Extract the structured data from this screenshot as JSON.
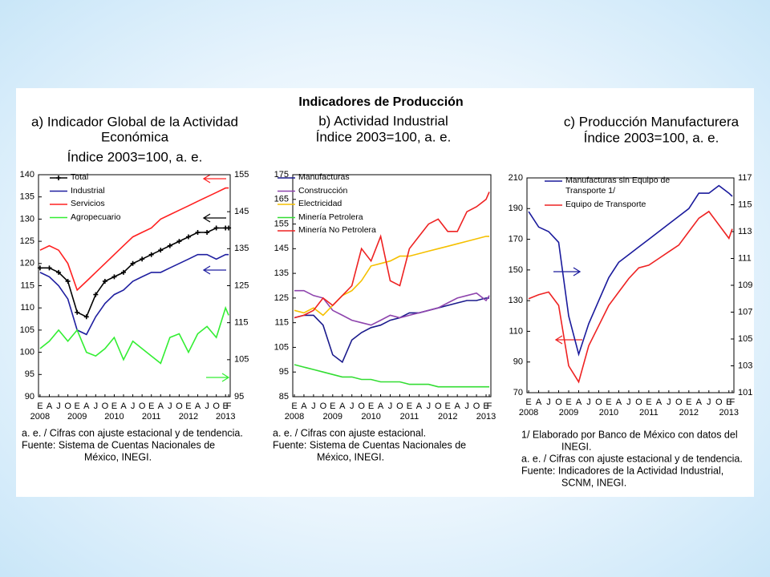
{
  "header": {
    "title": "Indicadores de Producción"
  },
  "chart_data": [
    {
      "type": "line",
      "title": [
        "a) Indicador Global de la Actividad",
        "Económica",
        "Índice 2003=100, a. e."
      ],
      "categories": [
        "E",
        "A",
        "J",
        "O",
        "E",
        "A",
        "J",
        "O",
        "E",
        "A",
        "J",
        "O",
        "E",
        "A",
        "J",
        "O",
        "E",
        "A",
        "J",
        "O",
        "E",
        "F"
      ],
      "years": [
        "2008",
        "2009",
        "2010",
        "2011",
        "2012",
        "2013"
      ],
      "ylim": [
        90,
        140
      ],
      "yticks": [
        90,
        95,
        100,
        105,
        110,
        115,
        120,
        125,
        130,
        135,
        140
      ],
      "y2lim": [
        95,
        155
      ],
      "y2ticks": [
        95,
        105,
        115,
        125,
        135,
        145,
        155
      ],
      "series": [
        {
          "name": "Total",
          "color": "#000000",
          "marker": "plus",
          "values": [
            119,
            119,
            118,
            116,
            109,
            108,
            113,
            116,
            117,
            118,
            120,
            121,
            122,
            123,
            124,
            125,
            126,
            127,
            127,
            128,
            128,
            128
          ]
        },
        {
          "name": "Industrial",
          "color": "#1f1fa0",
          "values": [
            118,
            117,
            115,
            112,
            105,
            104,
            108,
            111,
            113,
            114,
            116,
            117,
            118,
            118,
            119,
            120,
            121,
            122,
            122,
            121,
            122,
            122
          ]
        },
        {
          "name": "Servicios",
          "color": "#ff2020",
          "values": [
            123,
            124,
            123,
            120,
            114,
            116,
            118,
            120,
            122,
            124,
            126,
            127,
            128,
            130,
            131,
            132,
            133,
            134,
            135,
            136,
            137,
            137
          ]
        },
        {
          "name": "Agropecuario",
          "color": "#33ee33",
          "axis": "y2",
          "values": [
            108,
            110,
            113,
            110,
            113,
            107,
            106,
            108,
            111,
            105,
            110,
            108,
            106,
            104,
            111,
            112,
            107,
            112,
            114,
            111,
            119,
            117
          ]
        }
      ],
      "notes": [
        [
          "a. e. / Cifras con ajuste estacional y de tendencia."
        ],
        [
          "Fuente:  Sistema de Cuentas Nacionales de",
          "México, INEGI."
        ]
      ]
    },
    {
      "type": "line",
      "title": [
        "b) Actividad Industrial",
        "Índice 2003=100, a. e."
      ],
      "categories": [
        "E",
        "A",
        "J",
        "O",
        "E",
        "A",
        "J",
        "O",
        "E",
        "A",
        "J",
        "O",
        "E",
        "A",
        "J",
        "O",
        "E",
        "A",
        "J",
        "O",
        "E",
        "F"
      ],
      "years": [
        "2008",
        "2009",
        "2010",
        "2011",
        "2012",
        "2013"
      ],
      "ylim": [
        85,
        175
      ],
      "yticks": [
        85,
        95,
        105,
        115,
        125,
        135,
        145,
        155,
        165,
        175
      ],
      "series": [
        {
          "name": "Manufacturas",
          "color": "#1a1a8c",
          "values": [
            117,
            118,
            118,
            114,
            102,
            99,
            108,
            111,
            113,
            114,
            116,
            117,
            119,
            119,
            120,
            121,
            122,
            123,
            124,
            124,
            125,
            125
          ]
        },
        {
          "name": "Construcción",
          "color": "#8e44ad",
          "values": [
            128,
            128,
            126,
            125,
            120,
            118,
            116,
            115,
            114,
            116,
            118,
            117,
            118,
            119,
            120,
            121,
            123,
            125,
            126,
            127,
            124,
            126
          ]
        },
        {
          "name": "Electricidad",
          "color": "#f5c000",
          "values": [
            120,
            119,
            121,
            118,
            122,
            126,
            128,
            132,
            138,
            139,
            140,
            142,
            142,
            143,
            144,
            145,
            146,
            147,
            148,
            149,
            150,
            150
          ]
        },
        {
          "name": "Minería Petrolera",
          "color": "#33dd33",
          "values": [
            98,
            97,
            96,
            95,
            94,
            93,
            93,
            92,
            92,
            91,
            91,
            91,
            90,
            90,
            90,
            89,
            89,
            89,
            89,
            89,
            89,
            89
          ]
        },
        {
          "name": "Minería No Petrolera",
          "color": "#ee2222",
          "values": [
            117,
            118,
            120,
            125,
            122,
            126,
            130,
            145,
            140,
            150,
            132,
            130,
            145,
            150,
            155,
            157,
            152,
            152,
            160,
            162,
            165,
            168
          ]
        }
      ],
      "notes": [
        [
          "a. e. / Cifras con ajuste estacional."
        ],
        [
          "Fuente:  Sistema de Cuentas Nacionales de",
          "México, INEGI."
        ]
      ]
    },
    {
      "type": "line",
      "title": [
        "c) Producción Manufacturera",
        "Índice 2003=100, a. e."
      ],
      "categories": [
        "E",
        "A",
        "J",
        "O",
        "E",
        "A",
        "J",
        "O",
        "E",
        "A",
        "J",
        "O",
        "E",
        "A",
        "J",
        "O",
        "E",
        "A",
        "J",
        "O",
        "E",
        "F"
      ],
      "years": [
        "2008",
        "2009",
        "2010",
        "2011",
        "2012",
        "2013"
      ],
      "ylim": [
        70,
        210
      ],
      "yticks": [
        70,
        90,
        110,
        130,
        150,
        170,
        190,
        210
      ],
      "y2lim": [
        101,
        117
      ],
      "y2ticks": [
        101,
        103,
        105,
        107,
        109,
        111,
        113,
        115,
        117
      ],
      "series": [
        {
          "name": "Manufacturas sin Equipo de Transporte 1/",
          "color": "#1a1a9c",
          "values": [
            188,
            178,
            175,
            168,
            120,
            95,
            115,
            130,
            145,
            155,
            160,
            165,
            170,
            175,
            180,
            185,
            190,
            200,
            200,
            205,
            200,
            198
          ]
        },
        {
          "name": "Equipo de Transporte",
          "color": "#ee2222",
          "axis": "y2",
          "values": [
            108,
            108.3,
            108.5,
            107.5,
            103,
            101.8,
            104.5,
            106,
            107.5,
            108.5,
            109.5,
            110.3,
            110.5,
            111,
            111.5,
            112,
            113,
            114,
            114.5,
            113.5,
            112.5,
            113.2
          ]
        }
      ],
      "notes": [
        [
          "1/ Elaborado por Banco de México con datos del",
          "INEGI."
        ],
        [
          "a. e. / Cifras con ajuste estacional y de tendencia."
        ],
        [
          "Fuente:  Indicadores de la Actividad Industrial,",
          "SCNM, INEGI."
        ]
      ]
    }
  ]
}
